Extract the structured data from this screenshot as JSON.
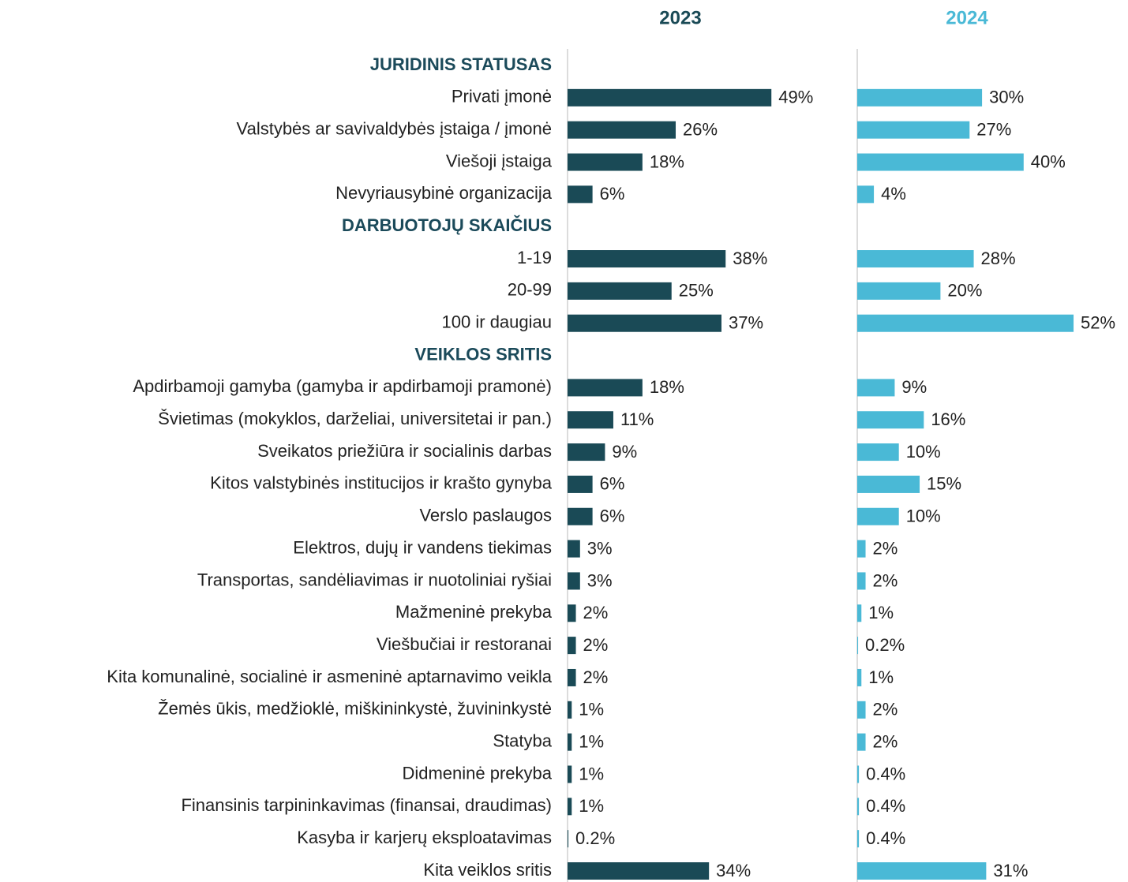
{
  "chart_data": {
    "type": "bar",
    "orientation": "horizontal",
    "sections": [
      {
        "title": "JURIDINIS STATUSAS",
        "categories": [
          "Privati įmonė",
          "Valstybės ar savivaldybės įstaiga / įmonė",
          "Viešoji įstaiga",
          "Nevyriausybinė organizacija"
        ]
      },
      {
        "title": "DARBUOTOJŲ SKAIČIUS",
        "categories": [
          "1-19",
          "20-99",
          "100 ir daugiau"
        ]
      },
      {
        "title": "VEIKLOS SRITIS",
        "categories": [
          "Apdirbamoji gamyba (gamyba ir apdirbamoji pramonė)",
          "Švietimas (mokyklos, darželiai, universitetai ir pan.)",
          "Sveikatos priežiūra ir socialinis darbas",
          "Kitos valstybinės institucijos ir krašto gynyba",
          "Verslo paslaugos",
          "Elektros, dujų ir vandens tiekimas",
          "Transportas, sandėliavimas ir nuotoliniai ryšiai",
          "Mažmeninė prekyba",
          "Viešbučiai ir restoranai",
          "Kita komunalinė, socialinė ir asmeninė aptarnavimo veikla",
          "Žemės ūkis, medžioklė, miškininkystė, žuvininkystė",
          "Statyba",
          "Didmeninė prekyba",
          "Finansinis tarpininkavimas (finansai, draudimas)",
          "Kasyba ir karjerų eksploatavimas",
          "Kita veiklos sritis"
        ]
      }
    ],
    "series": [
      {
        "name": "2023",
        "color": "#1a4a56",
        "values": [
          [
            49,
            26,
            18,
            6
          ],
          [
            38,
            25,
            37
          ],
          [
            18,
            11,
            9,
            6,
            6,
            3,
            3,
            2,
            2,
            2,
            1,
            1,
            1,
            1,
            0.2,
            34
          ]
        ],
        "value_labels": [
          [
            "49%",
            "26%",
            "18%",
            "6%"
          ],
          [
            "38%",
            "25%",
            "37%"
          ],
          [
            "18%",
            "11%",
            "9%",
            "6%",
            "6%",
            "3%",
            "3%",
            "2%",
            "2%",
            "2%",
            "1%",
            "1%",
            "1%",
            "1%",
            "0.2%",
            "34%"
          ]
        ]
      },
      {
        "name": "2024",
        "color": "#4ab9d6",
        "values": [
          [
            30,
            27,
            40,
            4
          ],
          [
            28,
            20,
            52
          ],
          [
            9,
            16,
            10,
            15,
            10,
            2,
            2,
            1,
            0.2,
            1,
            2,
            2,
            0.4,
            0.4,
            0.4,
            31
          ]
        ],
        "value_labels": [
          [
            "30%",
            "27%",
            "40%",
            "4%"
          ],
          [
            "28%",
            "20%",
            "52%"
          ],
          [
            "9%",
            "16%",
            "10%",
            "15%",
            "10%",
            "2%",
            "2%",
            "1%",
            "0.2%",
            "1%",
            "2%",
            "2%",
            "0.4%",
            "0.4%",
            "0.4%",
            "31%"
          ]
        ]
      }
    ],
    "header_color": "#1b4a5a"
  }
}
